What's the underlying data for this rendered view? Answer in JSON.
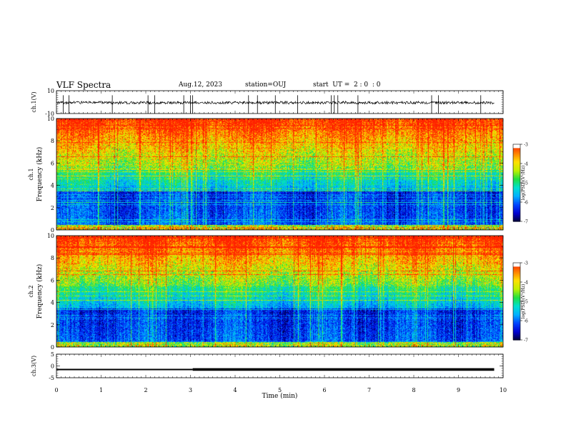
{
  "header": {
    "title": "VLF Spectra",
    "date": "Aug.12, 2023",
    "station": "station=OUJ",
    "start_ut": "start  UT =  2 : 0  : 0"
  },
  "colors": {
    "frame": "#000000",
    "background": "#ffffff",
    "colormap": [
      "#000033",
      "#0000d0",
      "#0044ff",
      "#00b0ff",
      "#00e0d0",
      "#20e040",
      "#c0f000",
      "#ffe000",
      "#ff8000",
      "#ff2000",
      "#ffffff"
    ]
  },
  "chart_data": [
    {
      "type": "line",
      "panel": "ch1-waveform",
      "ylabel": "ch.1(V)",
      "ylim": [
        -10,
        10
      ],
      "yticks": [
        "10",
        "-10"
      ],
      "xlim": [
        0,
        10
      ],
      "series": [
        {
          "baseline": -0.5,
          "amplitude": 1.2,
          "spike_times_min": [
            0.15,
            0.28,
            1.25,
            2.05,
            2.2,
            2.85,
            3.0,
            3.05,
            4.3,
            4.5,
            4.9,
            5.4,
            6.15,
            6.22,
            6.3,
            6.75,
            8.4,
            8.55,
            9.5
          ]
        }
      ]
    },
    {
      "type": "heatmap",
      "panel": "ch1-spectrogram",
      "ylabel": "ch.1 Frequency (kHz)",
      "ylim": [
        0,
        10
      ],
      "yticks": [
        "0",
        "2",
        "4",
        "6",
        "8",
        "10"
      ],
      "xlim": [
        0,
        10
      ],
      "colorbar": {
        "label": "log(PSD)(V²/Hz)",
        "range": [
          -7,
          -3
        ],
        "ticks": [
          "-3",
          "-4",
          "-5",
          "-6",
          "-7"
        ]
      }
    },
    {
      "type": "heatmap",
      "panel": "ch2-spectrogram",
      "ylabel": "ch.2 Frequency (kHz)",
      "ylim": [
        0,
        10
      ],
      "yticks": [
        "0",
        "2",
        "4",
        "6",
        "8",
        "10"
      ],
      "xlim": [
        0,
        10
      ],
      "colorbar": {
        "label": "log(PSD)(V²/Hz)",
        "range": [
          -7,
          -3
        ],
        "ticks": [
          "-3",
          "-4",
          "-5",
          "-6",
          "-7"
        ]
      }
    },
    {
      "type": "line",
      "panel": "ch3-signal",
      "ylabel": "ch.3(V)",
      "ylim": [
        -5,
        5
      ],
      "yticks": [
        "5",
        "0",
        "-5"
      ],
      "xlim": [
        0,
        10
      ],
      "series": [
        {
          "x": [
            0,
            3.05,
            3.05,
            9.8
          ],
          "y": [
            -1.5,
            -1.5,
            -1.5,
            -1.5
          ],
          "thick_from_min": 3.05
        }
      ]
    }
  ],
  "xaxis": {
    "label": "Time (min)",
    "ticks": [
      "0",
      "1",
      "2",
      "3",
      "4",
      "5",
      "6",
      "7",
      "8",
      "9",
      "10"
    ]
  }
}
